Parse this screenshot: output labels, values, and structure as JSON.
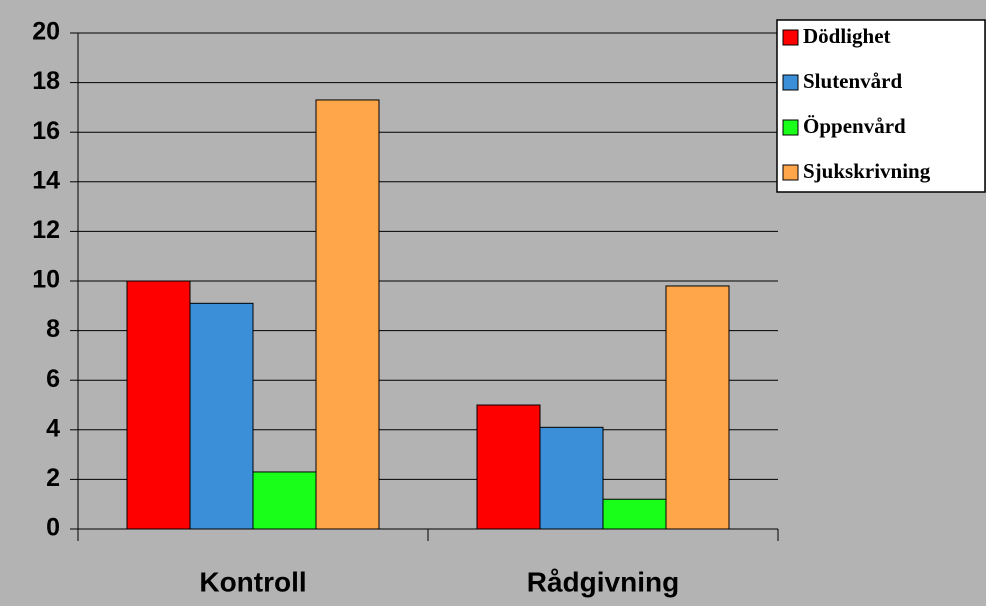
{
  "chart_data": {
    "type": "bar",
    "categories": [
      "Kontroll",
      "Rådgivning"
    ],
    "series": [
      {
        "name": "Dödlighet",
        "color": "#ff0000",
        "values": [
          10,
          5
        ]
      },
      {
        "name": "Slutenvård",
        "color": "#3a8fd8",
        "values": [
          9.1,
          4.1
        ]
      },
      {
        "name": "Öppenvård",
        "color": "#1aff1a",
        "values": [
          2.3,
          1.2
        ]
      },
      {
        "name": "Sjukskrivning",
        "color": "#ffa54a",
        "values": [
          17.3,
          9.8
        ]
      }
    ],
    "ylim": [
      0,
      20
    ],
    "yticks": [
      0,
      2,
      4,
      6,
      8,
      10,
      12,
      14,
      16,
      18,
      20
    ],
    "grid": true,
    "legend": "top-right"
  }
}
